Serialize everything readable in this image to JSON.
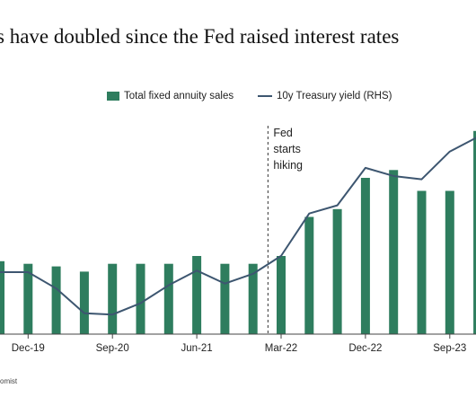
{
  "title": "s have doubled since the Fed raised interest rates",
  "footer": "omist",
  "colors": {
    "bar": "#2e7d5e",
    "line": "#3d5670",
    "axis": "#444444",
    "annotation_line": "#333333"
  },
  "chart_data": {
    "type": "bar",
    "categories": [
      "Sep-19",
      "Dec-19",
      "Mar-20",
      "Jun-20",
      "Sep-20",
      "Dec-20",
      "Mar-21",
      "Jun-21",
      "Sep-21",
      "Dec-21",
      "Mar-22",
      "Jun-22",
      "Sep-22",
      "Dec-22",
      "Mar-23",
      "Jun-23",
      "Sep-23",
      "Dec-23"
    ],
    "x_tick_labels": [
      {
        "category": "Dec-19",
        "label": "Dec-19"
      },
      {
        "category": "Sep-20",
        "label": "Sep-20"
      },
      {
        "category": "Jun-21",
        "label": "Jun-21"
      },
      {
        "category": "Mar-22",
        "label": "Mar-22"
      },
      {
        "category": "Dec-22",
        "label": "Dec-22"
      },
      {
        "category": "Sep-23",
        "label": "Sep-23"
      }
    ],
    "series": [
      {
        "name": "Total fixed annuity sales",
        "type": "bar",
        "axis": "left",
        "values": [
          28,
          27,
          26,
          24,
          27,
          27,
          27,
          30,
          27,
          27,
          30,
          45,
          48,
          60,
          63,
          55,
          55,
          78
        ]
      },
      {
        "name": "10y Treasury yield (RHS)",
        "type": "line",
        "axis": "right",
        "values": [
          1.9,
          1.9,
          1.4,
          0.64,
          0.6,
          0.95,
          1.5,
          1.95,
          1.55,
          1.85,
          2.4,
          3.7,
          3.95,
          5.1,
          4.85,
          4.75,
          5.6,
          6.05
        ]
      }
    ],
    "ylim_left": [
      0,
      80
    ],
    "ylim_right": [
      0,
      7
    ],
    "legend": "top-center",
    "grid": false,
    "annotation": {
      "text_lines": [
        "Fed",
        "starts",
        "hiking"
      ],
      "between_categories": [
        "Dec-21",
        "Mar-22"
      ]
    }
  }
}
